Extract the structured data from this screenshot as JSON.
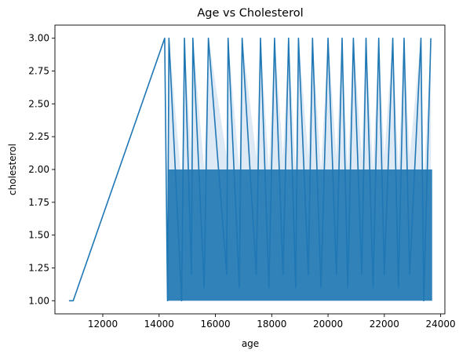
{
  "chart_data": {
    "type": "line",
    "title": "Age vs Cholesterol",
    "xlabel": "age",
    "ylabel": "cholesterol",
    "xlim": [
      10300,
      24150
    ],
    "ylim": [
      0.9,
      3.1
    ],
    "xticks": [
      12000,
      14000,
      16000,
      18000,
      20000,
      22000,
      24000
    ],
    "xtick_labels": [
      "12000",
      "14000",
      "16000",
      "18000",
      "20000",
      "22000",
      "24000"
    ],
    "yticks": [
      1.0,
      1.25,
      1.5,
      1.75,
      2.0,
      2.25,
      2.5,
      2.75,
      3.0
    ],
    "ytick_labels": [
      "1.00",
      "1.25",
      "1.50",
      "1.75",
      "2.00",
      "2.25",
      "2.50",
      "2.75",
      "3.00"
    ],
    "grid": false,
    "legend": "none",
    "series": [
      {
        "color": "#1f77b4",
        "band_color": "#c6dbef",
        "values_estimated": true,
        "x": [
          10800,
          10950,
          14200,
          14300,
          14350,
          14800,
          14900,
          15150,
          15200,
          15600,
          15750,
          16400,
          16450,
          16850,
          16950,
          17450,
          17600,
          17900,
          18100,
          18400,
          18600,
          18850,
          18950,
          19300,
          19450,
          19750,
          20000,
          20300,
          20500,
          20700,
          20900,
          21200,
          21350,
          21600,
          21800,
          22000,
          22300,
          22500,
          22700,
          22900,
          23300,
          23400,
          23650
        ],
        "y": [
          1.0,
          1.0,
          3.0,
          1.0,
          3.0,
          1.0,
          3.0,
          1.2,
          3.0,
          1.1,
          3.0,
          1.2,
          3.0,
          1.1,
          3.0,
          1.2,
          3.0,
          1.1,
          3.0,
          1.2,
          3.0,
          1.1,
          3.0,
          1.2,
          3.0,
          1.1,
          3.0,
          1.2,
          3.0,
          1.1,
          3.0,
          1.2,
          3.0,
          1.1,
          3.0,
          1.2,
          3.0,
          1.1,
          3.0,
          1.2,
          3.0,
          1.0,
          3.0
        ]
      }
    ]
  }
}
